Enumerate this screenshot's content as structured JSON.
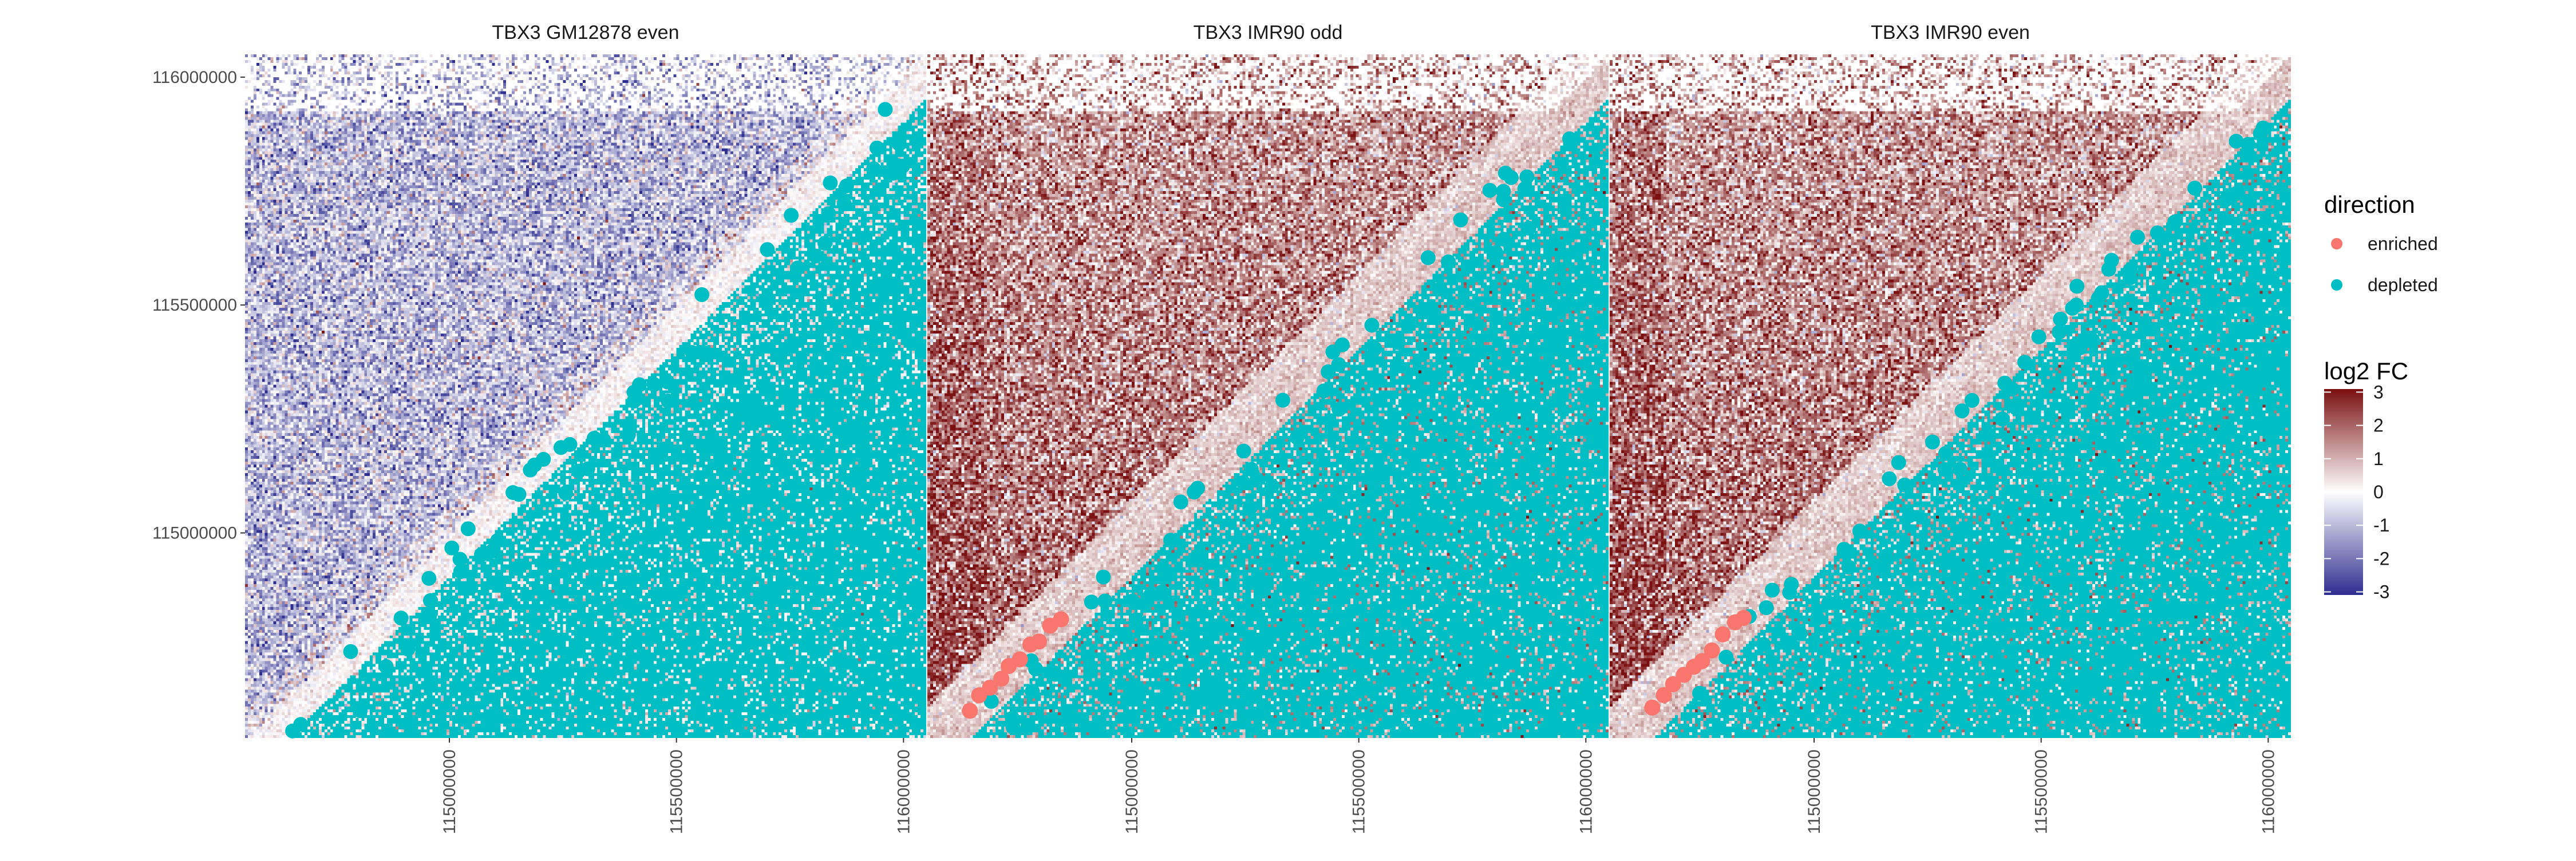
{
  "chart_data": {
    "type": "heatmap",
    "facets": [
      {
        "title": "TBX3 GM12878 even",
        "upper_tone": "mixed"
      },
      {
        "title": "TBX3 IMR90 odd",
        "upper_tone": "enriched"
      },
      {
        "title": "TBX3 IMR90 even",
        "upper_tone": "enriched"
      }
    ],
    "x_axis": {
      "range": [
        114550000,
        116050000
      ],
      "ticks": [
        {
          "value": 115000000,
          "label": "115000000"
        },
        {
          "value": 115500000,
          "label": "115500000"
        },
        {
          "value": 116000000,
          "label": "116000000"
        }
      ],
      "label_rotation": -90
    },
    "y_axis": {
      "range": [
        114550000,
        116050000
      ],
      "ticks": [
        {
          "value": 115000000,
          "label": "115000000"
        },
        {
          "value": 115500000,
          "label": "115500000"
        },
        {
          "value": 116000000,
          "label": "116000000"
        }
      ]
    },
    "fill_scale": {
      "title": "log2 FC",
      "min": -3,
      "max": 3,
      "ticks": [
        {
          "value": 3,
          "label": "3"
        },
        {
          "value": 2,
          "label": "2"
        },
        {
          "value": 1,
          "label": "1"
        },
        {
          "value": 0,
          "label": "0"
        },
        {
          "value": -1,
          "label": "-1"
        },
        {
          "value": -2,
          "label": "-2"
        },
        {
          "value": -3,
          "label": "-3"
        }
      ],
      "low_color": "#2d2d8f",
      "mid_color": "#ffffff",
      "high_color": "#7a1010"
    },
    "point_legend": {
      "title": "direction",
      "items": [
        {
          "label": "enriched",
          "color": "#f8766d"
        },
        {
          "label": "depleted",
          "color": "#00bfc4"
        }
      ]
    },
    "grid": false,
    "legend_position": "right"
  }
}
